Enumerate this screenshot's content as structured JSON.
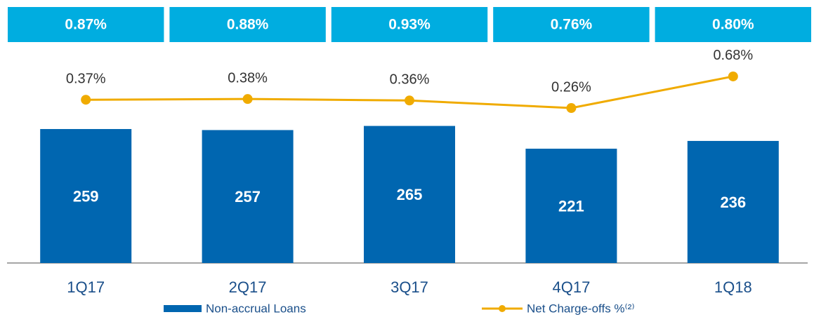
{
  "chart_data": {
    "type": "bar",
    "categories": [
      "1Q17",
      "2Q17",
      "3Q17",
      "4Q17",
      "1Q18"
    ],
    "box_values": [
      0.87,
      0.88,
      0.93,
      0.76,
      0.8
    ],
    "box_value_labels": [
      "0.87%",
      "0.88%",
      "0.93%",
      "0.76%",
      "0.80%"
    ],
    "box_color": "#00ade0",
    "series": [
      {
        "name": "Non-accrual Loans",
        "type": "bar",
        "color": "#0066b0",
        "values": [
          259,
          257,
          265,
          221,
          236
        ]
      },
      {
        "name": "Net Charge-offs %⁽²⁾",
        "type": "line",
        "axis": "y2",
        "color": "#f0ab00",
        "values": [
          0.37,
          0.38,
          0.36,
          0.26,
          0.68
        ],
        "value_labels": [
          "0.37%",
          "0.38%",
          "0.36%",
          "0.26%",
          "0.68%"
        ]
      }
    ],
    "ylim": [
      0,
      480
    ],
    "y2lim": [
      -1.8,
      1.5
    ]
  }
}
